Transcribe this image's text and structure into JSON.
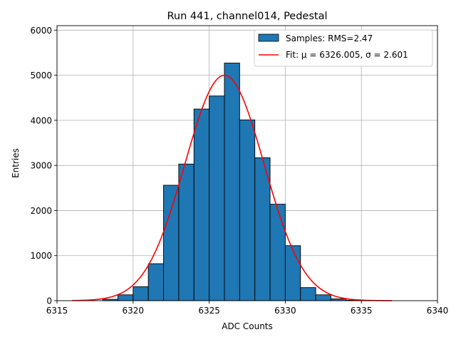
{
  "chart_data": {
    "type": "bar",
    "title": "Run 441, channel014, Pedestal",
    "xlabel": "ADC Counts",
    "ylabel": "Entries",
    "xlim": [
      6315,
      6340
    ],
    "ylim": [
      0,
      6100
    ],
    "xticks": [
      6315,
      6320,
      6325,
      6330,
      6335,
      6340
    ],
    "yticks": [
      0,
      1000,
      2000,
      3000,
      4000,
      5000,
      6000
    ],
    "grid": true,
    "bin_edges": [
      6316,
      6317,
      6318,
      6319,
      6320,
      6321,
      6322,
      6323,
      6324,
      6325,
      6326,
      6327,
      6328,
      6329,
      6330,
      6331,
      6332,
      6333,
      6334,
      6335,
      6336,
      6337
    ],
    "bin_counts": [
      0,
      0,
      30,
      130,
      310,
      820,
      2560,
      3030,
      4250,
      4540,
      5270,
      4010,
      3170,
      2140,
      1220,
      290,
      130,
      40,
      10,
      0,
      0
    ],
    "fit": {
      "mu": 6326.005,
      "sigma": 2.601,
      "amplitude": 5000,
      "x_range": [
        6316,
        6337
      ]
    },
    "legend": {
      "position": "upper-right",
      "entries": [
        {
          "label": "Samples: RMS=2.47",
          "kind": "patch",
          "color": "#1f77b4"
        },
        {
          "label": "Fit: μ = 6326.005, σ = 2.601",
          "kind": "line",
          "color": "#ff0000"
        }
      ]
    },
    "colors": {
      "bars": "#1f77b4",
      "bar_edge": "#000000",
      "fit_line": "#ff0000",
      "grid": "#b0b0b0"
    }
  }
}
